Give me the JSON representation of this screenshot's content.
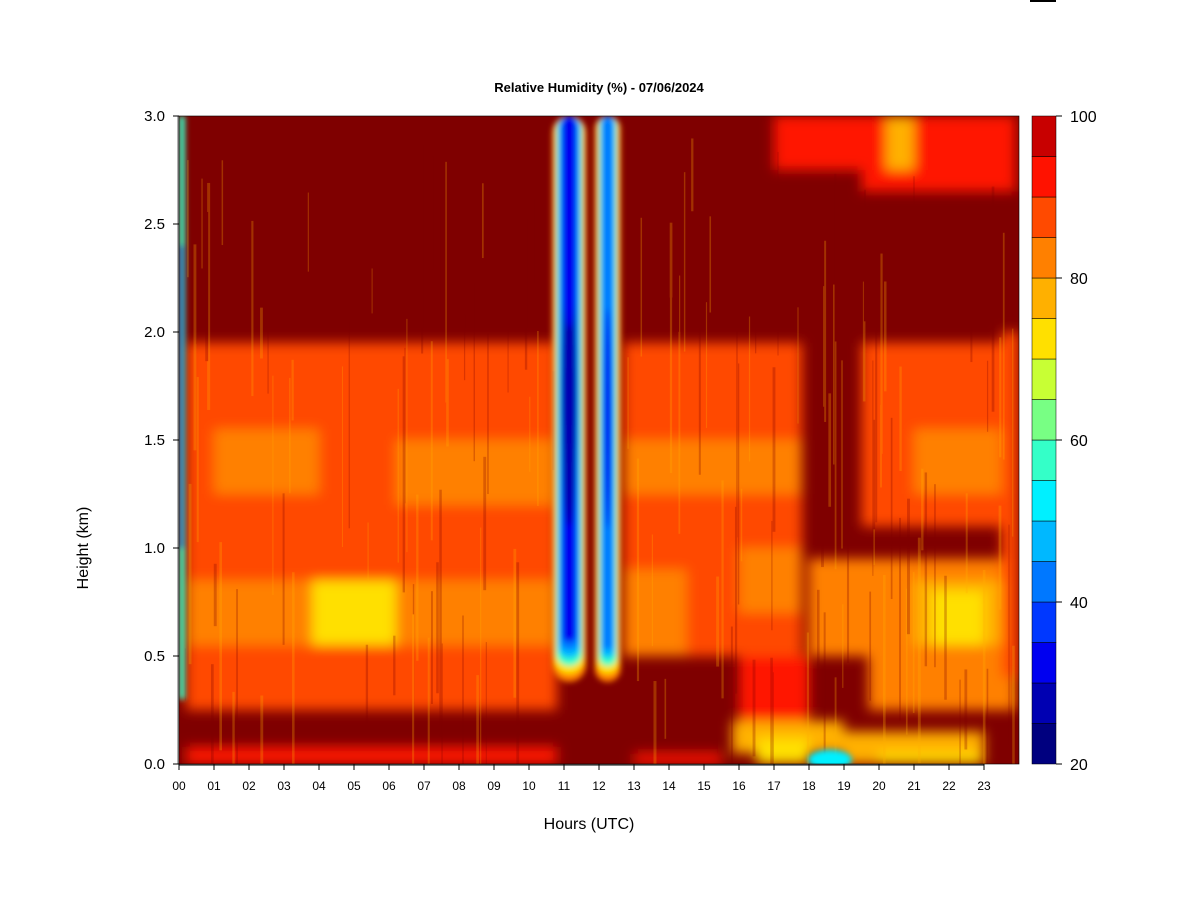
{
  "chart_data": {
    "type": "heatmap",
    "title": "Relative Humidity (%) - 07/06/2024",
    "xlabel": "Hours (UTC)",
    "ylabel": "Height (km)",
    "x_ticks": [
      "00",
      "01",
      "02",
      "03",
      "04",
      "05",
      "06",
      "07",
      "08",
      "09",
      "10",
      "11",
      "12",
      "13",
      "14",
      "15",
      "16",
      "17",
      "18",
      "19",
      "20",
      "21",
      "22",
      "23"
    ],
    "xlim": [
      0,
      24
    ],
    "ylim": [
      0.0,
      3.0
    ],
    "y_ticks": [
      "0.0",
      "0.5",
      "1.0",
      "1.5",
      "2.0",
      "2.5",
      "3.0"
    ],
    "colorbar": {
      "range": [
        20,
        100
      ],
      "step": 5,
      "tick_labels": [
        "20",
        "40",
        "60",
        "80",
        "100"
      ],
      "levels": [
        20,
        25,
        30,
        35,
        40,
        45,
        50,
        55,
        60,
        65,
        70,
        75,
        80,
        85,
        90,
        95,
        100
      ],
      "colors": [
        "#00007f",
        "#0000b2",
        "#0000f0",
        "#0038ff",
        "#0078ff",
        "#00b8ff",
        "#00f0ff",
        "#34ffc8",
        "#78ff84",
        "#c8ff34",
        "#ffe000",
        "#ffb000",
        "#ff8000",
        "#ff4a00",
        "#ff1200",
        "#c80000",
        "#7f0000"
      ]
    },
    "features": [
      {
        "x_start": 0.0,
        "x_end": 0.18,
        "y_start": 0.3,
        "y_end": 3.0,
        "rh": 30
      },
      {
        "x_start": 10.85,
        "x_end": 11.45,
        "y_start": 0.35,
        "y_end": 3.0,
        "rh": 28
      },
      {
        "x_start": 12.0,
        "x_end": 12.45,
        "y_start": 0.35,
        "y_end": 3.0,
        "rh": 32
      },
      {
        "x_start": 15.5,
        "x_end": 22.9,
        "y_start": 0.0,
        "y_end": 0.2,
        "rh": 55
      },
      {
        "x_start": 19.8,
        "x_end": 20.9,
        "y_start": 2.6,
        "y_end": 3.0,
        "rh": 70
      }
    ]
  }
}
